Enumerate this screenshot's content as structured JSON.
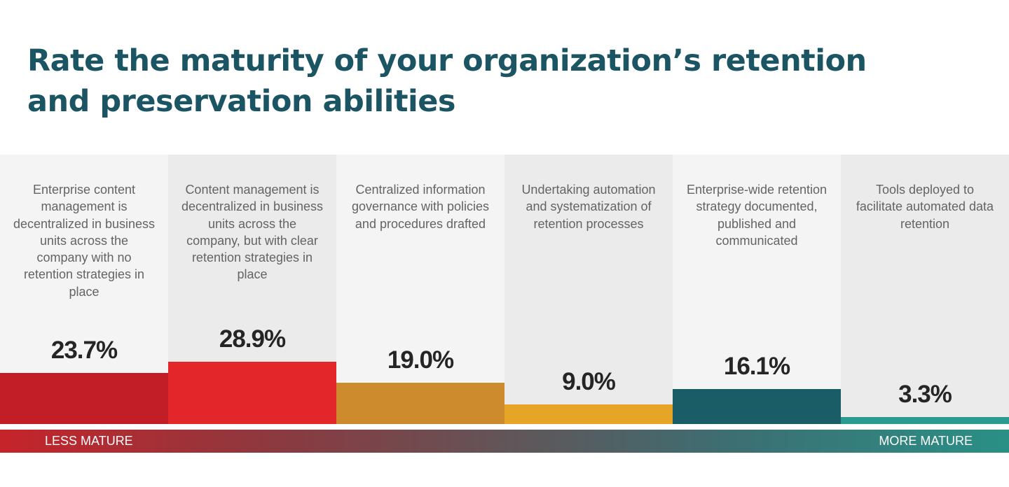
{
  "chart_data": {
    "type": "bar",
    "title": "Rate the maturity of your organization’s retention and preservation abilities",
    "categories": [
      "Enterprise content management is decentralized in business units across the company with no retention strategies in place",
      "Content management is decentralized in business units across the company, but with clear retention strategies in place",
      "Centralized information governance with policies and procedures drafted",
      "Undertaking automation and systematization of retention processes",
      "Enterprise-wide retention strategy documented, published and communicated",
      "Tools deployed to facilitate automated data retention"
    ],
    "values": [
      23.7,
      28.9,
      19.0,
      9.0,
      16.1,
      3.3
    ],
    "value_labels": [
      "23.7%",
      "28.9%",
      "19.0%",
      "9.0%",
      "16.1%",
      "3.3%"
    ],
    "ylim": [
      0,
      100
    ],
    "grid": false,
    "legend": "none",
    "scale": {
      "left_label": "LESS MATURE",
      "right_label": "MORE MATURE"
    }
  },
  "colors": {
    "title": "#1b5563",
    "bars": [
      "#c21e27",
      "#e2262a",
      "#cd8b2e",
      "#e6a526",
      "#1b5d67",
      "#2a9b8f"
    ],
    "column_backgrounds": [
      "#f4f4f5",
      "#ebebec"
    ]
  }
}
